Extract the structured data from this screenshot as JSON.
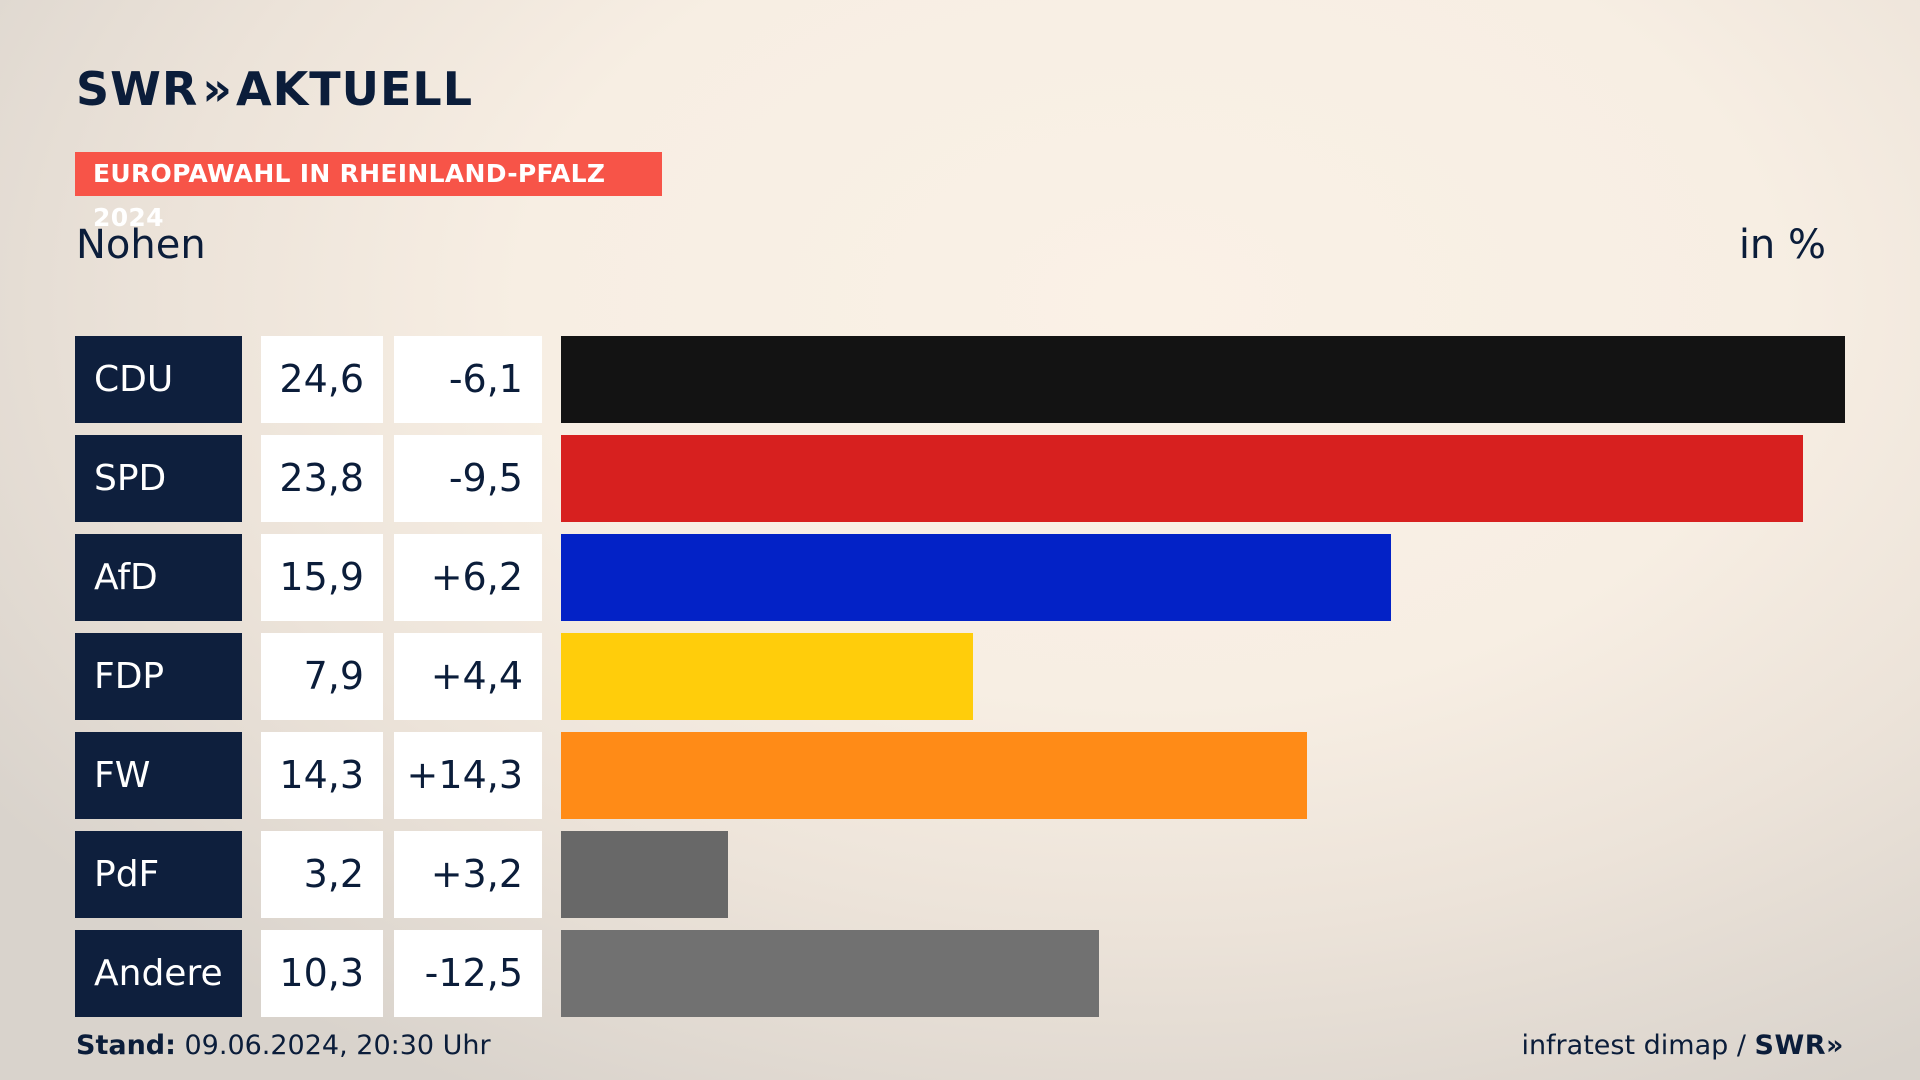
{
  "header": {
    "logo_left": "SWR",
    "logo_sep": "»",
    "logo_right": "AKTUELL",
    "tag": "EUROPAWAHL IN RHEINLAND-PFALZ 2024",
    "subtitle": "Nohen",
    "unit": "in %"
  },
  "footer": {
    "stand_label": "Stand:",
    "stand_value": " 09.06.2024, 20:30 Uhr",
    "source": "infratest dimap / ",
    "source_brand": "SWR»"
  },
  "chart_data": {
    "type": "bar",
    "orientation": "horizontal",
    "categories": [
      "CDU",
      "SPD",
      "AfD",
      "FDP",
      "FW",
      "PdF",
      "Andere"
    ],
    "values": [
      24.6,
      23.8,
      15.9,
      7.9,
      14.3,
      3.2,
      10.3
    ],
    "value_labels": [
      "24,6",
      "23,8",
      "15,9",
      "7,9",
      "14,3",
      "3,2",
      "10,3"
    ],
    "diff_labels": [
      "-6,1",
      "-9,5",
      "+6,2",
      "+4,4",
      "+14,3",
      "+3,2",
      "-12,5"
    ],
    "diffs": [
      -6.1,
      -9.5,
      6.2,
      4.4,
      14.3,
      3.2,
      -12.5
    ],
    "colors": [
      "#131313",
      "#d7201f",
      "#0322c6",
      "#ffcd0b",
      "#ff8b17",
      "#686868",
      "#717171"
    ],
    "xlim": [
      0,
      24.6
    ],
    "grid": false
  }
}
